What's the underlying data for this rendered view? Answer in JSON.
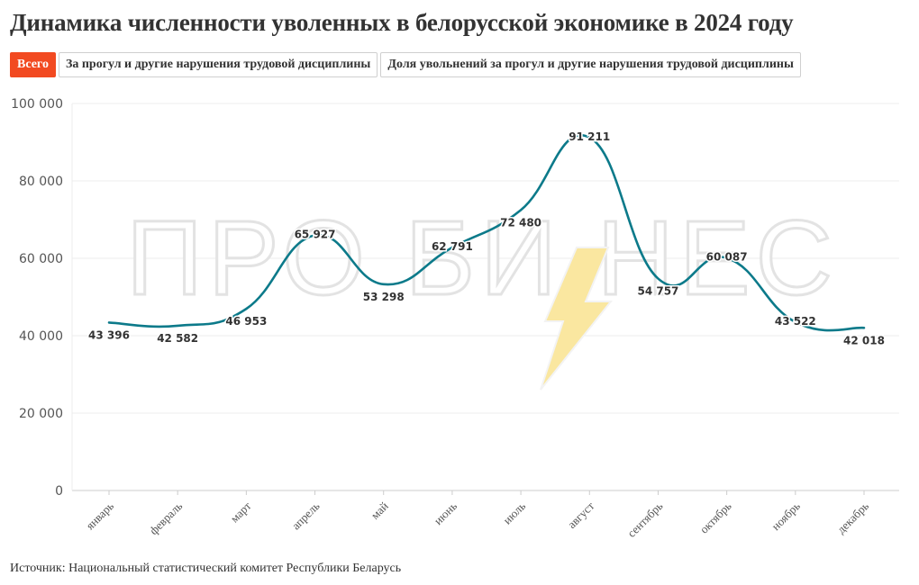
{
  "header": {
    "title": "Динамика численности уволенных в белорусской экономике в 2024 году"
  },
  "tabs": [
    {
      "label": "Всего",
      "active": true
    },
    {
      "label": "За прогул и другие нарушения трудовой дисциплины",
      "active": false
    },
    {
      "label": "Доля увольнений за прогул и другие нарушения трудовой дисциплины",
      "active": false
    }
  ],
  "watermark": {
    "text": "ПРО БИ НЕС"
  },
  "footer": {
    "source": "Источник: Национальный статистический комитет Республики Беларусь"
  },
  "colors": {
    "line": "#0c7a8a",
    "accent": "#f24a21",
    "watermark_bolt": "#f8e08a"
  },
  "chart_data": {
    "type": "line",
    "categories": [
      "январь",
      "февраль",
      "март",
      "апрель",
      "май",
      "июнь",
      "июль",
      "август",
      "сентябрь",
      "октябрь",
      "ноябрь",
      "декабрь"
    ],
    "values": [
      43396,
      42582,
      46953,
      65927,
      53298,
      62791,
      72480,
      91211,
      54757,
      60087,
      43522,
      42018
    ],
    "data_labels": [
      "43 396",
      "42 582",
      "46 953",
      "65 927",
      "53 298",
      "62 791",
      "72 480",
      "91 211",
      "54 757",
      "60 087",
      "43 522",
      "42 018"
    ],
    "y_ticks": [
      0,
      20000,
      40000,
      60000,
      80000,
      100000
    ],
    "y_tick_labels": [
      "0",
      "20 000",
      "40 000",
      "60 000",
      "80 000",
      "100 000"
    ],
    "ylim": [
      0,
      100000
    ],
    "grid": true,
    "legend": "none"
  }
}
